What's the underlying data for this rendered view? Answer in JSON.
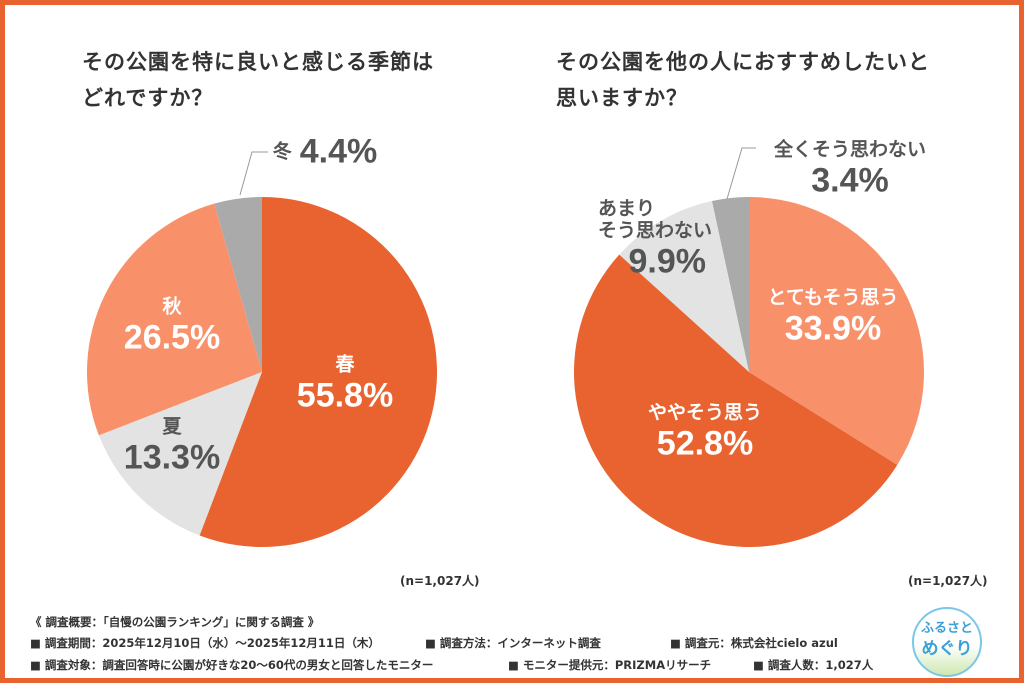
{
  "colors": {
    "border": "#E8632F",
    "dark_orange": "#E8632F",
    "light_orange": "#F8916A",
    "light_gray": "#E3E3E3",
    "gray": "#AAAAAA"
  },
  "chart_data": [
    {
      "type": "pie",
      "title_lines": [
        "その公園を特に良いと感じる季節は",
        "どれですか？"
      ],
      "note": "(n=1,027人)",
      "slices": [
        {
          "label": "春",
          "value": 55.8,
          "display": "55.8%",
          "color": "#E8632F"
        },
        {
          "label": "夏",
          "value": 13.3,
          "display": "13.3%",
          "color": "#E3E3E3"
        },
        {
          "label": "秋",
          "value": 26.5,
          "display": "26.5%",
          "color": "#F8916A"
        },
        {
          "label": "冬",
          "value": 4.4,
          "display": "4.4%",
          "color": "#AAAAAA"
        }
      ]
    },
    {
      "type": "pie",
      "title_lines": [
        "その公園を他の人におすすめしたいと",
        "思いますか？"
      ],
      "note": "(n=1,027人)",
      "slices": [
        {
          "label": "とてもそう思う",
          "value": 33.9,
          "display": "33.9%",
          "color": "#F8916A"
        },
        {
          "label": "ややそう思う",
          "value": 52.8,
          "display": "52.8%",
          "color": "#E8632F"
        },
        {
          "label": "あまり\nそう思わない",
          "label_lines": [
            "あまり",
            "そう思わない"
          ],
          "value": 9.9,
          "display": "9.9%",
          "color": "#E3E3E3"
        },
        {
          "label": "全くそう思わない",
          "value": 3.4,
          "display": "3.4%",
          "color": "#AAAAAA"
        }
      ]
    }
  ],
  "footer": {
    "heading": "《 調査概要：「自慢の公園ランキング」に関する調査 》",
    "row1": [
      "■ 調査期間：2025年12月10日（水）～2025年12月11日（木）",
      "■ 調査方法：インターネット調査",
      "■ 調査元：株式会社cielo azul"
    ],
    "row2": [
      "■ 調査対象：調査回答時に公園が好きな20～60代の男女と回答したモニター",
      "■ モニター提供元：PRIZMAリサーチ",
      "■ 調査人数：1,027人"
    ]
  },
  "logo": {
    "line1": "ふるさと",
    "line2": "めぐり"
  }
}
